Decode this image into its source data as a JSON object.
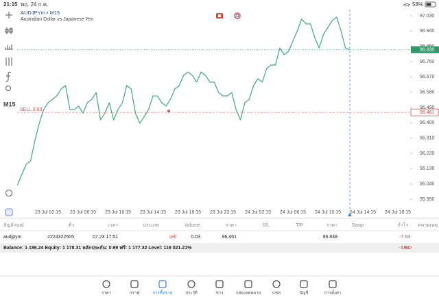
{
  "status_bar": {
    "time": "21:15",
    "date": "พฤ. 24 ก.ค.",
    "battery": "58%"
  },
  "toolbar": {
    "timeframe": "M15"
  },
  "chart_data": {
    "type": "line",
    "title": "AUDJPYm • M15",
    "subtitle": "Australian Dollar vs Japanese Yen",
    "categories": [
      null,
      null,
      null,
      null,
      null,
      null,
      null,
      "23 Jul 02:15",
      null,
      null,
      null,
      null,
      null,
      null,
      null,
      "23 Jul 06:15",
      null,
      null,
      null,
      null,
      null,
      null,
      null,
      "23 Jul 10:15",
      null,
      null,
      null,
      null,
      null,
      null,
      null,
      "23 Jul 14:15",
      null,
      null,
      null,
      null,
      null,
      null,
      null,
      "23 Jul 18:15",
      null,
      null,
      null,
      null,
      null,
      null,
      null,
      "23 Jul 22:15",
      null,
      null,
      null,
      null,
      null,
      null,
      null,
      "24 Jul 02:15",
      null,
      null,
      null,
      null,
      null,
      null,
      null,
      "24 Jul 06:15",
      null,
      null,
      null,
      null,
      null,
      null,
      null,
      "24 Jul 10:15",
      null,
      null,
      null,
      null,
      null,
      null,
      null,
      "24 Jul 14:15",
      null,
      null,
      null,
      null,
      null,
      null,
      null,
      "24 Jul 18:15"
    ],
    "values": [
      96.034,
      96.095,
      96.155,
      96.175,
      96.296,
      96.397,
      96.478,
      96.518,
      96.538,
      96.558,
      96.599,
      96.619,
      96.478,
      96.478,
      96.498,
      96.457,
      96.518,
      96.538,
      96.578,
      96.417,
      96.457,
      96.518,
      96.417,
      96.478,
      96.518,
      96.619,
      96.599,
      96.457,
      96.397,
      96.437,
      96.478,
      96.558,
      96.558,
      96.518,
      96.498,
      96.538,
      96.599,
      96.619,
      96.679,
      96.699,
      96.679,
      96.639,
      96.699,
      96.679,
      96.639,
      96.639,
      96.578,
      96.558,
      96.558,
      96.578,
      96.478,
      96.417,
      96.518,
      96.538,
      96.619,
      96.659,
      96.639,
      96.72,
      96.74,
      96.74,
      96.84,
      96.8,
      96.82,
      96.881,
      96.941,
      97.01,
      96.982,
      96.982,
      96.901,
      96.84,
      96.921,
      96.961,
      97.002,
      97.022,
      96.941,
      96.84,
      96.83,
      null,
      null,
      null,
      null,
      null,
      null,
      null,
      null,
      null,
      null,
      null
    ],
    "color": "#45b085",
    "ylim": [
      95.914,
      97.074
    ],
    "yticks": [
      {
        "value": 97.03,
        "label": "97.030"
      },
      {
        "value": 96.94,
        "label": "96.940"
      },
      {
        "value": 96.85,
        "label": "96.850"
      },
      {
        "value": 96.76,
        "label": "96.760"
      },
      {
        "value": 96.67,
        "label": "96.670"
      },
      {
        "value": 96.58,
        "label": "96.580"
      },
      {
        "value": 96.49,
        "label": "96.490"
      },
      {
        "value": 96.4,
        "label": "96.400"
      },
      {
        "value": 96.31,
        "label": "96.310"
      },
      {
        "value": 96.22,
        "label": "96.220"
      },
      {
        "value": 96.13,
        "label": "96.130"
      },
      {
        "value": 96.04,
        "label": "96.040"
      },
      {
        "value": 95.95,
        "label": "95.950"
      }
    ],
    "grid": false,
    "price_line": {
      "value": 96.83,
      "label": "96.830",
      "color": "#2f9a6a"
    },
    "order_line": {
      "text": "SELL 0.03",
      "value": 96.461,
      "label": "96.461",
      "color": "#e0463c"
    }
  },
  "positions": {
    "headers": [
      "สัญลักษณ์",
      "ตั๋ว",
      "เวลา",
      "ประเภท",
      "Volume",
      "ราคา",
      "S/L",
      "T/P",
      "ราคา",
      "Swap",
      "กำไร",
      "หมายเหตุ"
    ],
    "rows": [
      [
        "audjpym",
        "2224322505",
        "07.23 17:51",
        "sell",
        "0.03",
        "96.461",
        null,
        null,
        "96.848",
        null,
        "-7.93",
        null
      ]
    ]
  },
  "account": {
    "summary": "Balance: 1 186.24 Equity: 1 178.31 หลักประกัน: 0.99 ฟรี: 1 177.32 Level: 119 021.21%",
    "profit": "-7.93",
    "currency": "USD"
  },
  "nav": {
    "items": [
      "ราคา",
      "กราฟ",
      "การซื้อขาย",
      "ประวัติ",
      "ข่าว",
      "กล่องจดหมาย",
      "แชท",
      "บัญชี",
      "การตั้งค่า"
    ],
    "active": 2
  }
}
